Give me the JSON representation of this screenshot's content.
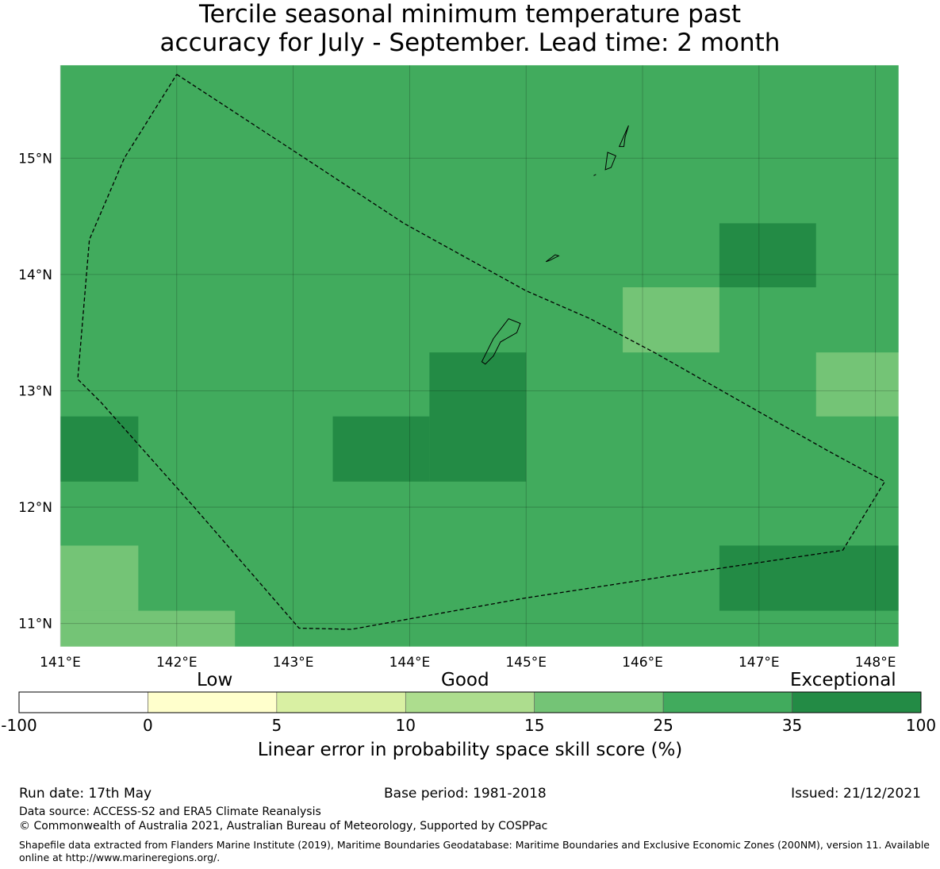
{
  "title": {
    "line1": "Tercile seasonal minimum temperature past",
    "line2": "accuracy for July - September. Lead time: 2 month"
  },
  "map": {
    "lon_labels": [
      "141°E",
      "142°E",
      "143°E",
      "144°E",
      "145°E",
      "146°E",
      "147°E",
      "148°E"
    ],
    "lat_labels": [
      "15°N",
      "14°N",
      "13°N",
      "12°N",
      "11°N"
    ],
    "lon_range": [
      141.0,
      148.2
    ],
    "lat_range": [
      10.8,
      15.8
    ],
    "background_color": "#41ab5d",
    "cells": [
      {
        "lon": [
          146.66,
          147.49
        ],
        "lat": [
          13.89,
          14.44
        ],
        "category": "35-100",
        "color": "#238b45"
      },
      {
        "lon": [
          145.83,
          146.66
        ],
        "lat": [
          13.33,
          13.89
        ],
        "category": "15-25",
        "color": "#74c476"
      },
      {
        "lon": [
          147.49,
          148.2
        ],
        "lat": [
          12.78,
          13.33
        ],
        "category": "15-25",
        "color": "#74c476"
      },
      {
        "lon": [
          144.17,
          145.0
        ],
        "lat": [
          12.22,
          13.33
        ],
        "category": "35-100",
        "color": "#238b45"
      },
      {
        "lon": [
          143.34,
          144.17
        ],
        "lat": [
          12.22,
          12.78
        ],
        "category": "35-100",
        "color": "#238b45"
      },
      {
        "lon": [
          141.0,
          141.67
        ],
        "lat": [
          12.22,
          12.78
        ],
        "category": "35-100",
        "color": "#238b45"
      },
      {
        "lon": [
          141.0,
          141.67
        ],
        "lat": [
          11.11,
          11.67
        ],
        "category": "15-25",
        "color": "#74c476"
      },
      {
        "lon": [
          141.0,
          142.5
        ],
        "lat": [
          10.8,
          11.11
        ],
        "category": "15-25",
        "color": "#74c476"
      },
      {
        "lon": [
          146.66,
          148.2
        ],
        "lat": [
          11.11,
          11.67
        ],
        "category": "35-100",
        "color": "#238b45"
      }
    ],
    "eez_boundary": [
      [
        142.0,
        15.72
      ],
      [
        143.1,
        15.0
      ],
      [
        143.95,
        14.44
      ],
      [
        145.0,
        13.86
      ],
      [
        145.55,
        13.62
      ],
      [
        146.1,
        13.33
      ],
      [
        147.0,
        12.82
      ],
      [
        147.6,
        12.48
      ],
      [
        148.08,
        12.22
      ],
      [
        147.72,
        11.63
      ],
      [
        146.5,
        11.45
      ],
      [
        145.0,
        11.22
      ],
      [
        143.5,
        10.95
      ],
      [
        143.05,
        10.96
      ],
      [
        142.15,
        12.0
      ],
      [
        141.35,
        12.9
      ],
      [
        141.15,
        13.1
      ],
      [
        141.25,
        14.3
      ],
      [
        141.55,
        15.0
      ],
      [
        142.0,
        15.72
      ]
    ],
    "islands": [
      [
        [
          144.62,
          13.25
        ],
        [
          144.72,
          13.45
        ],
        [
          144.85,
          13.62
        ],
        [
          144.95,
          13.58
        ],
        [
          144.92,
          13.5
        ],
        [
          144.78,
          13.42
        ],
        [
          144.72,
          13.3
        ],
        [
          144.65,
          13.23
        ]
      ],
      [
        [
          145.17,
          14.11
        ],
        [
          145.25,
          14.17
        ],
        [
          145.28,
          14.16
        ],
        [
          145.2,
          14.12
        ]
      ],
      [
        [
          145.68,
          14.9
        ],
        [
          145.7,
          15.05
        ],
        [
          145.77,
          15.02
        ],
        [
          145.73,
          14.92
        ]
      ],
      [
        [
          145.8,
          15.1
        ],
        [
          145.88,
          15.28
        ],
        [
          145.85,
          15.18
        ],
        [
          145.84,
          15.1
        ]
      ],
      [
        [
          145.58,
          14.85
        ],
        [
          145.6,
          14.86
        ]
      ]
    ]
  },
  "colorbar": {
    "categories": [
      {
        "label": "Low",
        "position": "left"
      },
      {
        "label": "Good",
        "position": "center"
      },
      {
        "label": "Exceptional",
        "position": "right"
      }
    ],
    "colors": [
      "#ffffff",
      "#ffffcc",
      "#d9f0a3",
      "#addd8e",
      "#74c476",
      "#41ab5d",
      "#238b45"
    ],
    "ticks": [
      "-100",
      "0",
      "5",
      "10",
      "15",
      "25",
      "35",
      "100"
    ],
    "title": "Linear error in probability space skill score (%)"
  },
  "footer": {
    "run_date": "Run date: 17th May",
    "base_period": "Base period: 1981-2018",
    "issued": "Issued: 21/12/2021",
    "data_source": "Data source: ACCESS-S2 and ERA5 Climate Reanalysis",
    "copyright": "© Commonwealth of Australia 2021, Australian Bureau of Meteorology, Supported by COSPPac",
    "shapefile": "Shapefile data extracted from Flanders Marine Institute (2019), Maritime Boundaries Geodatabase: Maritime Boundaries and Exclusive Economic Zones (200NM), version 11. Available online at http://www.marineregions.org/."
  }
}
